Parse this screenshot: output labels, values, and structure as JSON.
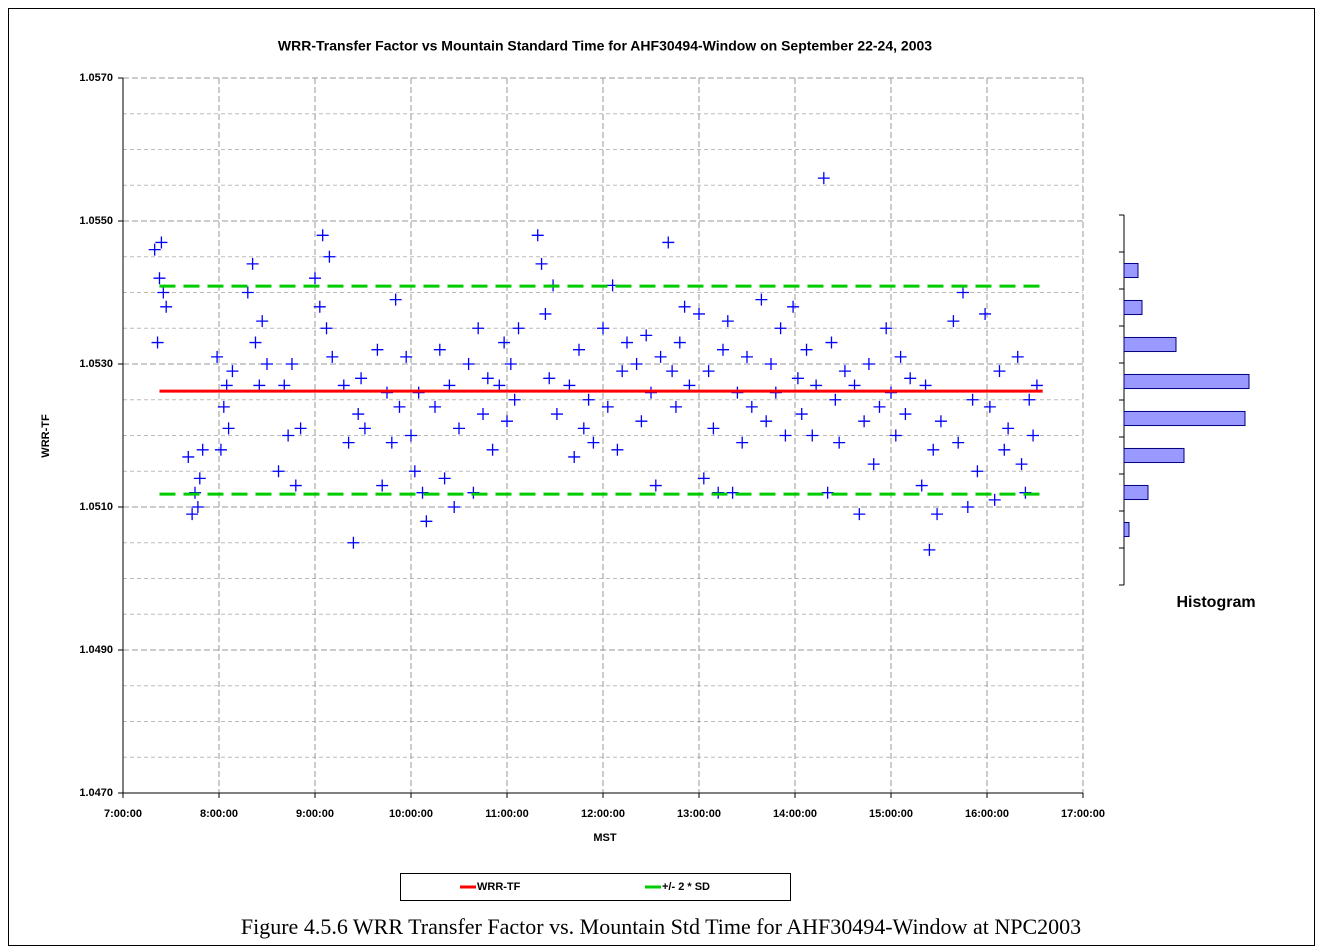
{
  "chart_data": [
    {
      "type": "scatter",
      "title": "WRR-Transfer Factor vs Mountain Standard Time for AHF30494-Window on September 22-24, 2003",
      "x_label": "MST",
      "y_label": "WRR-TF",
      "xlim": [
        7,
        17
      ],
      "xticks": [
        {
          "value": 7,
          "label": "7:00:00"
        },
        {
          "value": 8,
          "label": "8:00:00"
        },
        {
          "value": 9,
          "label": "9:00:00"
        },
        {
          "value": 10,
          "label": "10:00:00"
        },
        {
          "value": 11,
          "label": "11:00:00"
        },
        {
          "value": 12,
          "label": "12:00:00"
        },
        {
          "value": 13,
          "label": "13:00:00"
        },
        {
          "value": 14,
          "label": "14:00:00"
        },
        {
          "value": 15,
          "label": "15:00:00"
        },
        {
          "value": 16,
          "label": "16:00:00"
        },
        {
          "value": 17,
          "label": "17:00:00"
        }
      ],
      "ylim": [
        1.047,
        1.057
      ],
      "yticks": [
        {
          "value": 1.047,
          "label": "1.0470"
        },
        {
          "value": 1.049,
          "label": "1.0490"
        },
        {
          "value": 1.051,
          "label": "1.0510"
        },
        {
          "value": 1.053,
          "label": "1.0530"
        },
        {
          "value": 1.055,
          "label": "1.0550"
        },
        {
          "value": 1.057,
          "label": "1.0570"
        }
      ],
      "y_minor_ticks": [
        1.0475,
        1.048,
        1.0485,
        1.0495,
        1.05,
        1.0505,
        1.0515,
        1.052,
        1.0525,
        1.0535,
        1.054,
        1.0545,
        1.0555,
        1.056,
        1.0565
      ],
      "grid": true,
      "legend": "bottom",
      "points": {
        "color": "#0000ff",
        "x": [
          7.33,
          7.36,
          7.38,
          7.4,
          7.42,
          7.45,
          7.68,
          7.72,
          7.75,
          7.78,
          7.8,
          7.83,
          7.98,
          8.02,
          8.05,
          8.08,
          8.1,
          8.14,
          8.3,
          8.35,
          8.38,
          8.42,
          8.45,
          8.5,
          8.62,
          8.68,
          8.72,
          8.76,
          8.8,
          8.85,
          9.0,
          9.05,
          9.08,
          9.12,
          9.15,
          9.18,
          9.3,
          9.35,
          9.4,
          9.45,
          9.48,
          9.52,
          9.65,
          9.7,
          9.75,
          9.8,
          9.84,
          9.88,
          9.95,
          10.0,
          10.04,
          10.08,
          10.12,
          10.16,
          10.25,
          10.3,
          10.35,
          10.4,
          10.45,
          10.5,
          10.6,
          10.65,
          10.7,
          10.75,
          10.8,
          10.85,
          10.92,
          10.97,
          11.0,
          11.04,
          11.08,
          11.12,
          11.32,
          11.36,
          11.4,
          11.44,
          11.48,
          11.52,
          11.65,
          11.7,
          11.75,
          11.8,
          11.85,
          11.9,
          12.0,
          12.05,
          12.1,
          12.15,
          12.2,
          12.25,
          12.35,
          12.4,
          12.45,
          12.5,
          12.55,
          12.6,
          12.68,
          12.72,
          12.76,
          12.8,
          12.85,
          12.9,
          13.0,
          13.05,
          13.1,
          13.15,
          13.2,
          13.25,
          13.3,
          13.35,
          13.4,
          13.45,
          13.5,
          13.55,
          13.65,
          13.7,
          13.75,
          13.8,
          13.85,
          13.9,
          13.98,
          14.03,
          14.07,
          14.12,
          14.18,
          14.22,
          14.3,
          14.34,
          14.38,
          14.42,
          14.46,
          14.52,
          14.62,
          14.67,
          14.72,
          14.77,
          14.82,
          14.88,
          14.95,
          15.0,
          15.05,
          15.1,
          15.15,
          15.2,
          15.32,
          15.36,
          15.4,
          15.44,
          15.48,
          15.52,
          15.65,
          15.7,
          15.75,
          15.8,
          15.85,
          15.9,
          15.98,
          16.03,
          16.08,
          16.13,
          16.18,
          16.22,
          16.32,
          16.36,
          16.4,
          16.44,
          16.48,
          16.52
        ],
        "values": [
          1.0546,
          1.0533,
          1.0542,
          1.0547,
          1.054,
          1.0538,
          1.0517,
          1.0509,
          1.0512,
          1.051,
          1.0514,
          1.0518,
          1.0531,
          1.0518,
          1.0524,
          1.0527,
          1.0521,
          1.0529,
          1.054,
          1.0544,
          1.0533,
          1.0527,
          1.0536,
          1.053,
          1.0515,
          1.0527,
          1.052,
          1.053,
          1.0513,
          1.0521,
          1.0542,
          1.0538,
          1.0548,
          1.0535,
          1.0545,
          1.0531,
          1.0527,
          1.0519,
          1.0505,
          1.0523,
          1.0528,
          1.0521,
          1.0532,
          1.0513,
          1.0526,
          1.0519,
          1.0539,
          1.0524,
          1.0531,
          1.052,
          1.0515,
          1.0526,
          1.0512,
          1.0508,
          1.0524,
          1.0532,
          1.0514,
          1.0527,
          1.051,
          1.0521,
          1.053,
          1.0512,
          1.0535,
          1.0523,
          1.0528,
          1.0518,
          1.0527,
          1.0533,
          1.0522,
          1.053,
          1.0525,
          1.0535,
          1.0548,
          1.0544,
          1.0537,
          1.0528,
          1.0541,
          1.0523,
          1.0527,
          1.0517,
          1.0532,
          1.0521,
          1.0525,
          1.0519,
          1.0535,
          1.0524,
          1.0541,
          1.0518,
          1.0529,
          1.0533,
          1.053,
          1.0522,
          1.0534,
          1.0526,
          1.0513,
          1.0531,
          1.0547,
          1.0529,
          1.0524,
          1.0533,
          1.0538,
          1.0527,
          1.0537,
          1.0514,
          1.0529,
          1.0521,
          1.0512,
          1.0532,
          1.0536,
          1.0512,
          1.0526,
          1.0519,
          1.0531,
          1.0524,
          1.0539,
          1.0522,
          1.053,
          1.0526,
          1.0535,
          1.052,
          1.0538,
          1.0528,
          1.0523,
          1.0532,
          1.052,
          1.0527,
          1.0556,
          1.0512,
          1.0533,
          1.0525,
          1.0519,
          1.0529,
          1.0527,
          1.0509,
          1.0522,
          1.053,
          1.0516,
          1.0524,
          1.0535,
          1.0526,
          1.052,
          1.0531,
          1.0523,
          1.0528,
          1.0513,
          1.0527,
          1.0504,
          1.0518,
          1.0509,
          1.0522,
          1.0536,
          1.0519,
          1.054,
          1.051,
          1.0525,
          1.0515,
          1.0537,
          1.0524,
          1.0511,
          1.0529,
          1.0518,
          1.0521,
          1.0531,
          1.0516,
          1.0512,
          1.0525,
          1.052,
          1.0527
        ]
      },
      "series": [
        {
          "name": "WRR-TF",
          "color": "#ff0000",
          "dash": false,
          "x": [
            7.38,
            16.58
          ],
          "values": [
            1.05262,
            1.05262
          ]
        },
        {
          "name": "+/- 2 * SD",
          "color": "#00cc00",
          "dash": true,
          "x": [
            7.38,
            16.58,
            null,
            7.38,
            16.58
          ],
          "values": [
            1.05409,
            1.05409,
            null,
            1.05118,
            1.05118
          ]
        }
      ]
    },
    {
      "type": "histogram",
      "title": "Histogram",
      "orientation": "horizontal",
      "color": "#9999ff",
      "bins": [
        1.05,
        1.0505,
        1.051,
        1.0515,
        1.052,
        1.0525,
        1.053,
        1.0535,
        1.054,
        1.0545,
        1.055
      ],
      "counts": [
        0,
        5,
        24,
        60,
        121,
        125,
        52,
        18,
        14,
        0
      ],
      "xlim": [
        0,
        130
      ],
      "ylim": [
        1.05,
        1.055
      ]
    }
  ],
  "caption": "Figure 4.5.6 WRR Transfer Factor vs. Mountain Std Time for AHF30494-Window at NPC2003"
}
